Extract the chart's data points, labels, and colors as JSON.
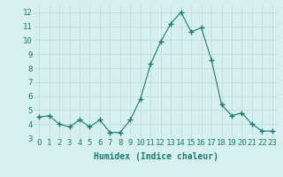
{
  "x": [
    0,
    1,
    2,
    3,
    4,
    5,
    6,
    7,
    8,
    9,
    10,
    11,
    12,
    13,
    14,
    15,
    16,
    17,
    18,
    19,
    20,
    21,
    22,
    23
  ],
  "y": [
    4.5,
    4.6,
    4.0,
    3.8,
    4.3,
    3.8,
    4.3,
    3.4,
    3.4,
    4.3,
    5.8,
    8.3,
    9.9,
    11.2,
    12.0,
    10.6,
    10.9,
    8.6,
    5.4,
    4.6,
    4.8,
    4.0,
    3.5,
    3.5
  ],
  "xlabel": "Humidex (Indice chaleur)",
  "line_color": "#1a7a6e",
  "marker_color": "#1a7a6e",
  "bg_color": "#d6f0ef",
  "grid_color": "#c0dedd",
  "ylim": [
    3,
    12.5
  ],
  "yticks": [
    3,
    4,
    5,
    6,
    7,
    8,
    9,
    10,
    11,
    12
  ],
  "xticks": [
    0,
    1,
    2,
    3,
    4,
    5,
    6,
    7,
    8,
    9,
    10,
    11,
    12,
    13,
    14,
    15,
    16,
    17,
    18,
    19,
    20,
    21,
    22,
    23
  ],
  "xlabel_fontsize": 7,
  "tick_fontsize": 6.5,
  "tick_color": "#1a7a6e"
}
